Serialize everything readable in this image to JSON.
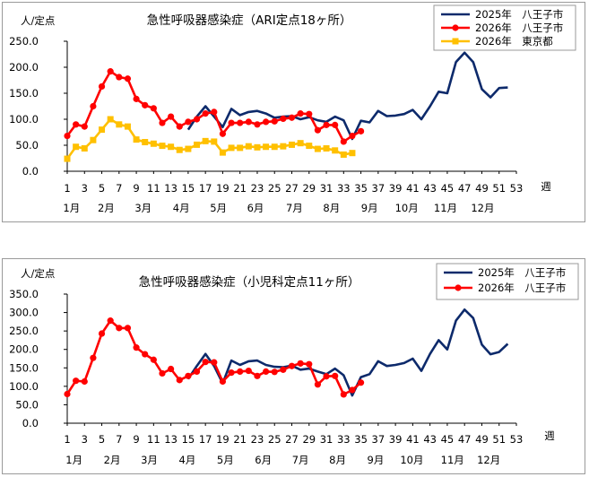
{
  "chart_data": [
    {
      "type": "line",
      "title": "急性呼吸器感染症（ARI定点18ヶ所）",
      "ylabel": "人/定点",
      "xlabel": "週",
      "ylim": [
        0,
        250
      ],
      "yticks": [
        "0.0",
        "50.0",
        "100.0",
        "150.0",
        "200.0",
        "250.0"
      ],
      "xlim": [
        1,
        53
      ],
      "xticks": [
        "1",
        "3",
        "5",
        "7",
        "9",
        "11",
        "13",
        "15",
        "17",
        "19",
        "21",
        "23",
        "25",
        "27",
        "29",
        "31",
        "33",
        "35",
        "37",
        "39",
        "41",
        "43",
        "45",
        "47",
        "49",
        "51",
        "53"
      ],
      "months": [
        {
          "label": "1月",
          "week": 1.5
        },
        {
          "label": "2月",
          "week": 5.5
        },
        {
          "label": "3月",
          "week": 9.8
        },
        {
          "label": "4月",
          "week": 14.2
        },
        {
          "label": "5月",
          "week": 18.5
        },
        {
          "label": "6月",
          "week": 22.8
        },
        {
          "label": "7月",
          "week": 27.3
        },
        {
          "label": "8月",
          "week": 31.6
        },
        {
          "label": "9月",
          "week": 36
        },
        {
          "label": "10月",
          "week": 40.3
        },
        {
          "label": "11月",
          "week": 44.8
        },
        {
          "label": "12月",
          "week": 49.1
        }
      ],
      "grid": false,
      "legend_position": "top-right",
      "series": [
        {
          "name": "2025年　八王子市",
          "color": "#0d2a6b",
          "marker": "none",
          "x": [
            15,
            16,
            17,
            18,
            19,
            20,
            21,
            22,
            23,
            24,
            25,
            26,
            27,
            28,
            29,
            30,
            31,
            32,
            33,
            34,
            35,
            36,
            37,
            38,
            39,
            40,
            41,
            42,
            43,
            44,
            45,
            46,
            47,
            48,
            49,
            50,
            51,
            52
          ],
          "values": [
            80,
            105,
            125,
            105,
            85,
            120,
            108,
            114,
            116,
            111,
            103,
            105,
            106,
            100,
            104,
            98,
            95,
            105,
            98,
            62,
            97,
            94,
            116,
            106,
            107,
            110,
            118,
            100,
            125,
            153,
            150,
            210,
            228,
            210,
            158,
            142,
            160,
            161
          ]
        },
        {
          "name": "2026年　八王子市",
          "color": "#ff0000",
          "marker": "circle",
          "x": [
            1,
            2,
            3,
            4,
            5,
            6,
            7,
            8,
            9,
            10,
            11,
            12,
            13,
            14,
            15,
            16,
            17,
            18,
            19,
            20,
            21,
            22,
            23,
            24,
            25,
            26,
            27,
            28,
            29,
            30,
            31,
            32,
            33,
            34,
            35
          ],
          "values": [
            68,
            90,
            86,
            125,
            163,
            192,
            181,
            178,
            139,
            127,
            121,
            93,
            105,
            86,
            95,
            100,
            111,
            114,
            72,
            93,
            93,
            95,
            90,
            95,
            96,
            101,
            103,
            111,
            110,
            79,
            89,
            89,
            57,
            68,
            77
          ]
        },
        {
          "name": "2026年　東京都",
          "color": "#ffc000",
          "marker": "square",
          "x": [
            1,
            2,
            3,
            4,
            5,
            6,
            7,
            8,
            9,
            10,
            11,
            12,
            13,
            14,
            15,
            16,
            17,
            18,
            19,
            20,
            21,
            22,
            23,
            24,
            25,
            26,
            27,
            28,
            29,
            30,
            31,
            32,
            33,
            34
          ],
          "values": [
            24,
            47,
            44,
            60,
            80,
            100,
            90,
            86,
            61,
            56,
            53,
            49,
            47,
            41,
            43,
            51,
            58,
            57,
            36,
            45,
            45,
            48,
            46,
            47,
            47,
            48,
            51,
            54,
            49,
            43,
            44,
            40,
            32,
            35
          ]
        }
      ]
    },
    {
      "type": "line",
      "title": "急性呼吸器感染症（小児科定点11ヶ所）",
      "ylabel": "人/定点",
      "xlabel": "週",
      "ylim": [
        0,
        350
      ],
      "yticks": [
        "0.0",
        "50.0",
        "100.0",
        "150.0",
        "200.0",
        "250.0",
        "300.0",
        "350.0"
      ],
      "xlim": [
        1,
        53
      ],
      "xticks": [
        "1",
        "3",
        "5",
        "7",
        "9",
        "11",
        "13",
        "15",
        "17",
        "19",
        "21",
        "23",
        "25",
        "27",
        "29",
        "31",
        "33",
        "35",
        "37",
        "39",
        "41",
        "43",
        "45",
        "47",
        "49",
        "51",
        "53"
      ],
      "months": [
        {
          "label": "1月",
          "week": 1.8
        },
        {
          "label": "2月",
          "week": 6.2
        },
        {
          "label": "3月",
          "week": 10.5
        },
        {
          "label": "4月",
          "week": 14.9
        },
        {
          "label": "5月",
          "week": 19.3
        },
        {
          "label": "6月",
          "week": 23.7
        },
        {
          "label": "7月",
          "week": 28
        },
        {
          "label": "8月",
          "week": 32.3
        },
        {
          "label": "9月",
          "week": 36.7
        },
        {
          "label": "10月",
          "week": 40.9
        },
        {
          "label": "11月",
          "week": 45.6
        },
        {
          "label": "12月",
          "week": 49.8
        }
      ],
      "grid": false,
      "legend_position": "top-right",
      "series": [
        {
          "name": "2025年　八王子市",
          "color": "#0d2a6b",
          "marker": "none",
          "x": [
            15,
            16,
            17,
            18,
            19,
            20,
            21,
            22,
            23,
            24,
            25,
            26,
            27,
            28,
            29,
            30,
            31,
            32,
            33,
            34,
            35,
            36,
            37,
            38,
            39,
            40,
            41,
            42,
            43,
            44,
            45,
            46,
            47,
            48,
            49,
            50,
            51,
            52
          ],
          "values": [
            120,
            155,
            188,
            155,
            108,
            170,
            158,
            168,
            170,
            158,
            153,
            152,
            156,
            145,
            148,
            140,
            133,
            148,
            130,
            75,
            125,
            133,
            168,
            155,
            158,
            163,
            175,
            142,
            188,
            225,
            200,
            278,
            308,
            285,
            213,
            187,
            193,
            215
          ]
        },
        {
          "name": "2026年　八王子市",
          "color": "#ff0000",
          "marker": "circle",
          "x": [
            1,
            2,
            3,
            4,
            5,
            6,
            7,
            8,
            9,
            10,
            11,
            12,
            13,
            14,
            15,
            16,
            17,
            18,
            19,
            20,
            21,
            22,
            23,
            24,
            25,
            26,
            27,
            28,
            29,
            30,
            31,
            32,
            33,
            34,
            35
          ],
          "values": [
            79,
            115,
            113,
            177,
            243,
            278,
            258,
            258,
            205,
            187,
            172,
            135,
            147,
            117,
            128,
            140,
            166,
            165,
            113,
            137,
            140,
            142,
            128,
            140,
            139,
            145,
            155,
            162,
            160,
            105,
            127,
            128,
            78,
            90,
            110
          ]
        }
      ]
    }
  ]
}
